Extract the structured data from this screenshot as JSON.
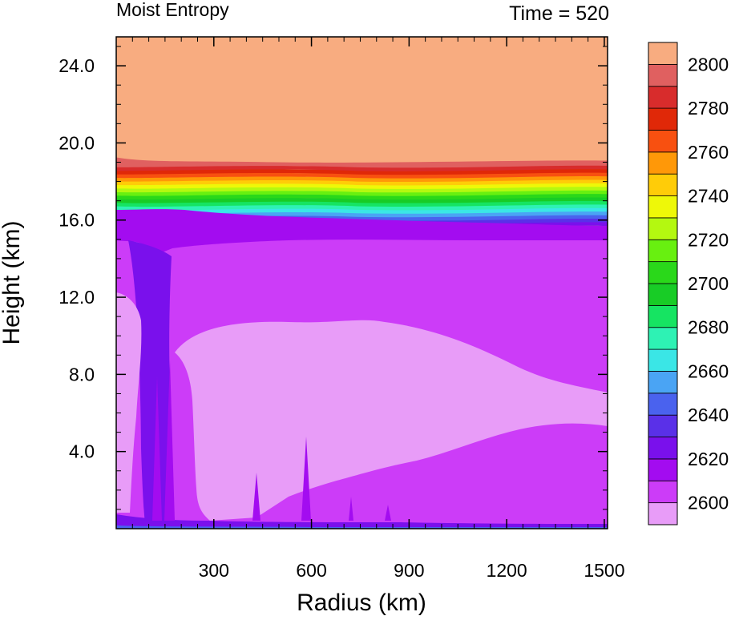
{
  "chart_data": {
    "type": "heatmap",
    "title_left": "Moist Entropy",
    "title_right": "Time = 520",
    "xlabel": "Radius (km)",
    "ylabel": "Height (km)",
    "x_ticks": [
      300,
      600,
      900,
      1200,
      1500
    ],
    "x_tick_labels": [
      "300",
      "600",
      "900",
      "1200",
      "1500"
    ],
    "xlim": [
      0,
      1510
    ],
    "y_ticks": [
      4,
      8,
      12,
      16,
      20,
      24
    ],
    "y_tick_labels": [
      "4.0",
      "8.0",
      "12.0",
      "16.0",
      "20.0",
      "24.0"
    ],
    "ylim": [
      0,
      25.5
    ],
    "colorbar": {
      "labels": [
        "2600",
        "2620",
        "2640",
        "2660",
        "2680",
        "2700",
        "2720",
        "2740",
        "2760",
        "2780",
        "2800"
      ],
      "levels": [
        2590,
        2600,
        2610,
        2620,
        2630,
        2640,
        2650,
        2660,
        2670,
        2680,
        2690,
        2700,
        2710,
        2720,
        2730,
        2740,
        2750,
        2760,
        2770,
        2780,
        2790,
        2800,
        2810
      ],
      "colors": [
        "#e89cf8",
        "#cc3cf8",
        "#a30cf0",
        "#7a10ec",
        "#5a30e8",
        "#4a62ee",
        "#4aa4f4",
        "#3ae6e6",
        "#2ef2b4",
        "#16e462",
        "#18cc26",
        "#2ad81a",
        "#68f010",
        "#b4f810",
        "#eef808",
        "#ffcc08",
        "#ff9808",
        "#f85010",
        "#e02808",
        "#d82c2c",
        "#e06060",
        "#f8ac80"
      ]
    },
    "regions": [
      {
        "name": "top",
        "value_range": [
          2800,
          2810
        ],
        "z_range": [
          19,
          25.5
        ]
      },
      {
        "name": "upper-gradient",
        "value_range": [
          2640,
          2800
        ],
        "z_range": [
          15.7,
          19
        ]
      },
      {
        "name": "upper-purple",
        "value_range": [
          2610,
          2630
        ],
        "z_range": [
          15,
          16.5
        ]
      },
      {
        "name": "mid-magenta",
        "value_range": [
          2600,
          2610
        ],
        "z_range": [
          0.5,
          15
        ]
      },
      {
        "name": "min-lilac",
        "value_range": [
          2590,
          2600
        ],
        "z_range": [
          0.5,
          12
        ]
      },
      {
        "name": "boundary-layer",
        "value_range": [
          2620,
          2660
        ],
        "z_range": [
          0,
          0.5
        ]
      }
    ]
  }
}
